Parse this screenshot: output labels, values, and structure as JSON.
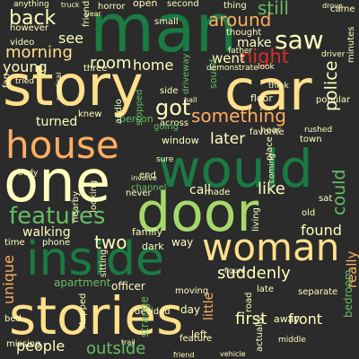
{
  "palette": {
    "background": "#2b2b2b",
    "dark_green": "#1a7a43",
    "light_green": "#a6d96a",
    "mid_green": "#66bd63",
    "cream": "#fee08b",
    "light_yellow": "#ffffbf",
    "orange": "#fdae61",
    "deep_orange": "#f46d43",
    "red": "#d73027",
    "dark_red": "#a50026"
  },
  "words": [
    {
      "text": "man",
      "color": "dark_green"
    },
    {
      "text": "story",
      "color": "cream"
    },
    {
      "text": "car",
      "color": "cream"
    },
    {
      "text": "would",
      "color": "dark_green"
    },
    {
      "text": "one",
      "color": "light_yellow"
    },
    {
      "text": "house",
      "color": "orange"
    },
    {
      "text": "door",
      "color": "light_green"
    },
    {
      "text": "stories",
      "color": "cream"
    },
    {
      "text": "inside",
      "color": "dark_green"
    },
    {
      "text": "woman",
      "color": "cream"
    },
    {
      "text": "features",
      "color": "mid_green"
    },
    {
      "text": "saw",
      "color": "light_yellow"
    },
    {
      "text": "back",
      "color": "light_yellow"
    },
    {
      "text": "around",
      "color": "orange"
    },
    {
      "text": "still",
      "color": "mid_green"
    },
    {
      "text": "night",
      "color": "red"
    },
    {
      "text": "morning",
      "color": "cream"
    },
    {
      "text": "room",
      "color": "light_yellow"
    },
    {
      "text": "young",
      "color": "light_yellow"
    },
    {
      "text": "home",
      "color": "light_yellow"
    },
    {
      "text": "police",
      "color": "light_yellow"
    },
    {
      "text": "got",
      "color": "light_yellow"
    },
    {
      "text": "something",
      "color": "orange"
    },
    {
      "text": "later",
      "color": "light_yellow"
    },
    {
      "text": "could",
      "color": "mid_green"
    },
    {
      "text": "like",
      "color": "light_yellow"
    },
    {
      "text": "call",
      "color": "light_yellow"
    },
    {
      "text": "found",
      "color": "light_yellow"
    },
    {
      "text": "suddenly",
      "color": "light_yellow"
    },
    {
      "text": "two",
      "color": "light_yellow"
    },
    {
      "text": "unique",
      "color": "orange"
    },
    {
      "text": "walking",
      "color": "light_yellow"
    },
    {
      "text": "people",
      "color": "light_yellow"
    },
    {
      "text": "outside",
      "color": "mid_green"
    },
    {
      "text": "first",
      "color": "light_yellow"
    },
    {
      "text": "front",
      "color": "light_yellow"
    },
    {
      "text": "see",
      "color": "light_yellow"
    },
    {
      "text": "make",
      "color": "light_yellow"
    },
    {
      "text": "went",
      "color": "light_yellow"
    },
    {
      "text": "turned",
      "color": "light_yellow"
    },
    {
      "text": "really",
      "color": "orange"
    },
    {
      "text": "apartment",
      "color": "mid_green"
    },
    {
      "text": "officer",
      "color": "light_yellow"
    },
    {
      "text": "window",
      "color": "light_yellow"
    },
    {
      "text": "family",
      "color": "light_yellow"
    },
    {
      "text": "dark",
      "color": "light_yellow"
    },
    {
      "text": "way",
      "color": "light_yellow"
    },
    {
      "text": "left",
      "color": "light_yellow"
    },
    {
      "text": "day",
      "color": "light_yellow"
    },
    {
      "text": "little",
      "color": "orange"
    },
    {
      "text": "bedroom",
      "color": "mid_green"
    },
    {
      "text": "away",
      "color": "light_yellow"
    },
    {
      "text": "video",
      "color": "light_yellow"
    },
    {
      "text": "person",
      "color": "mid_green"
    },
    {
      "text": "floor",
      "color": "light_yellow"
    },
    {
      "text": "horror",
      "color": "light_yellow"
    },
    {
      "text": "open",
      "color": "light_yellow"
    },
    {
      "text": "thing",
      "color": "light_yellow"
    },
    {
      "text": "came",
      "color": "light_yellow"
    },
    {
      "text": "driveway",
      "color": "mid_green"
    },
    {
      "text": "stopped",
      "color": "mid_green"
    },
    {
      "text": "sound",
      "color": "mid_green"
    },
    {
      "text": "town",
      "color": "light_yellow"
    },
    {
      "text": "popular",
      "color": "light_yellow"
    },
    {
      "text": "favorite",
      "color": "light_yellow"
    },
    {
      "text": "across",
      "color": "light_yellow"
    },
    {
      "text": "going",
      "color": "mid_green"
    },
    {
      "text": "end",
      "color": "light_yellow"
    },
    {
      "text": "never",
      "color": "light_yellow"
    },
    {
      "text": "channel",
      "color": "mid_green"
    },
    {
      "text": "made",
      "color": "light_yellow"
    },
    {
      "text": "sat",
      "color": "light_yellow"
    },
    {
      "text": "old",
      "color": "light_yellow"
    },
    {
      "text": "living",
      "color": "light_yellow"
    },
    {
      "text": "moving",
      "color": "light_yellow"
    },
    {
      "text": "stepped",
      "color": "light_yellow"
    },
    {
      "text": "strange",
      "color": "mid_green"
    },
    {
      "text": "decided",
      "color": "light_yellow"
    },
    {
      "text": "road",
      "color": "light_yellow"
    },
    {
      "text": "late",
      "color": "light_yellow"
    },
    {
      "text": "bed",
      "color": "light_yellow"
    },
    {
      "text": "missing",
      "color": "light_yellow"
    },
    {
      "text": "feature",
      "color": "light_yellow"
    },
    {
      "text": "separate",
      "color": "light_yellow"
    },
    {
      "text": "thought",
      "color": "light_yellow"
    },
    {
      "text": "however",
      "color": "light_yellow"
    },
    {
      "text": "friends",
      "color": "light_yellow"
    },
    {
      "text": "three",
      "color": "light_yellow"
    },
    {
      "text": "knew",
      "color": "light_yellow"
    },
    {
      "text": "audio",
      "color": "light_yellow"
    },
    {
      "text": "looking",
      "color": "light_yellow"
    },
    {
      "text": "nearby",
      "color": "light_yellow"
    },
    {
      "text": "time",
      "color": "light_yellow"
    },
    {
      "text": "phone",
      "color": "light_yellow"
    },
    {
      "text": "sitting",
      "color": "light_yellow"
    },
    {
      "text": "second",
      "color": "light_yellow"
    },
    {
      "text": "small",
      "color": "light_yellow"
    },
    {
      "text": "side",
      "color": "light_yellow"
    },
    {
      "text": "hear",
      "color": "light_yellow"
    },
    {
      "text": "hall",
      "color": "light_yellow"
    },
    {
      "text": "sure",
      "color": "light_yellow"
    },
    {
      "text": "body",
      "color": "light_yellow"
    },
    {
      "text": "middle",
      "color": "light_yellow"
    },
    {
      "text": "actually",
      "color": "light_yellow"
    },
    {
      "text": "place",
      "color": "light_yellow"
    },
    {
      "text": "fan",
      "color": "light_yellow"
    },
    {
      "text": "tried",
      "color": "light_yellow"
    },
    {
      "text": "think",
      "color": "light_yellow"
    },
    {
      "text": "rushed",
      "color": "light_yellow"
    },
    {
      "text": "coming",
      "color": "light_yellow"
    },
    {
      "text": "minutes",
      "color": "light_yellow"
    },
    {
      "text": "drove",
      "color": "light_yellow"
    },
    {
      "text": "driver",
      "color": "light_yellow"
    },
    {
      "text": "father",
      "color": "light_yellow"
    },
    {
      "text": "demonstrate",
      "color": "light_yellow"
    },
    {
      "text": "anything",
      "color": "light_yellow"
    },
    {
      "text": "truck",
      "color": "light_yellow"
    },
    {
      "text": "year",
      "color": "light_yellow"
    },
    {
      "text": "medical",
      "color": "light_yellow"
    },
    {
      "text": "trail",
      "color": "light_yellow"
    },
    {
      "text": "friend",
      "color": "light_yellow"
    },
    {
      "text": "figure",
      "color": "light_yellow"
    },
    {
      "text": "look",
      "color": "light_yellow"
    },
    {
      "text": "involve",
      "color": "light_yellow"
    },
    {
      "text": "vehicle",
      "color": "light_yellow"
    }
  ]
}
